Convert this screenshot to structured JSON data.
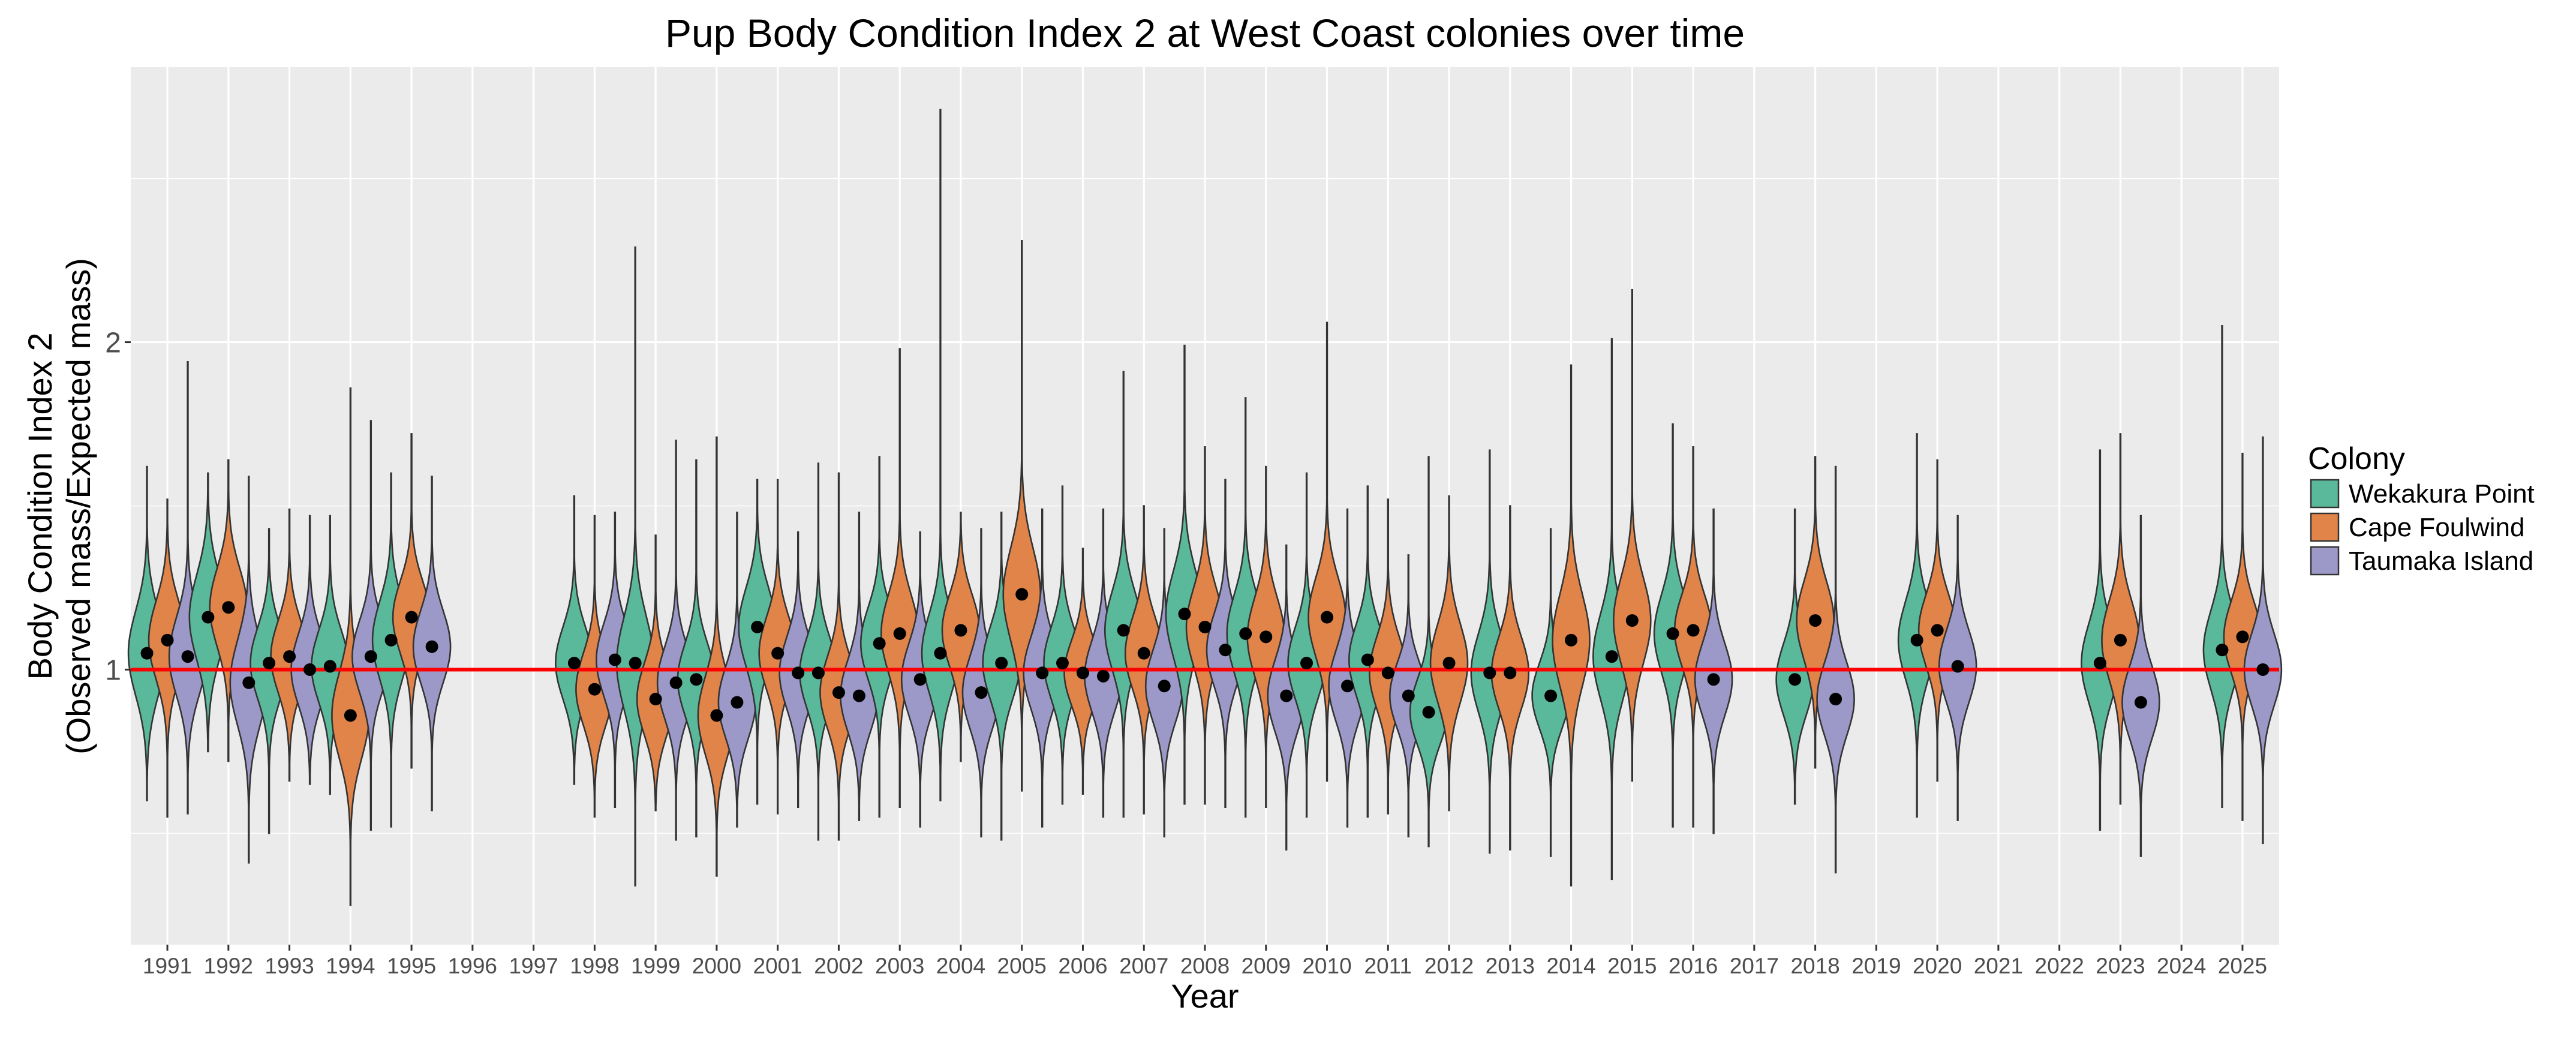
{
  "chart_data": {
    "type": "violin",
    "title": "Pup Body Condition Index 2 at West Coast colonies over time",
    "xlabel": "Year",
    "ylabel_lines": [
      "Body Condition Index 2",
      "(Observed mass/Expected mass)"
    ],
    "y_ticks": [
      1,
      2
    ],
    "y_tick_labels": [
      "1",
      "2"
    ],
    "ylim": [
      0.16,
      2.84
    ],
    "reference_line": {
      "value": 1,
      "color": "#ff0000"
    },
    "legend": {
      "title": "Colony",
      "position": "right",
      "entries": [
        {
          "name": "Wekakura Point",
          "color": "#5bb99b"
        },
        {
          "name": "Cape Foulwind",
          "color": "#e0844a"
        },
        {
          "name": "Taumaka Island",
          "color": "#9c99c9"
        }
      ]
    },
    "years": [
      "1991",
      "1992",
      "1993",
      "1994",
      "1995",
      "1996",
      "1997",
      "1998",
      "1999",
      "2000",
      "2001",
      "2002",
      "2003",
      "2004",
      "2005",
      "2006",
      "2007",
      "2008",
      "2009",
      "2010",
      "2011",
      "2012",
      "2013",
      "2014",
      "2015",
      "2016",
      "2017",
      "2018",
      "2019",
      "2020",
      "2021",
      "2022",
      "2023",
      "2024",
      "2025"
    ],
    "series": [
      {
        "year": "1991",
        "colony": "Wekakura Point",
        "mean": 1.05,
        "min": 0.6,
        "max": 1.62,
        "spread": 0.13
      },
      {
        "year": "1991",
        "colony": "Cape Foulwind",
        "mean": 1.09,
        "min": 0.55,
        "max": 1.52,
        "spread": 0.12
      },
      {
        "year": "1991",
        "colony": "Taumaka Island",
        "mean": 1.04,
        "min": 0.56,
        "max": 1.94,
        "spread": 0.12
      },
      {
        "year": "1992",
        "colony": "Wekakura Point",
        "mean": 1.16,
        "min": 0.75,
        "max": 1.6,
        "spread": 0.13
      },
      {
        "year": "1992",
        "colony": "Cape Foulwind",
        "mean": 1.19,
        "min": 0.72,
        "max": 1.64,
        "spread": 0.12
      },
      {
        "year": "1992",
        "colony": "Taumaka Island",
        "mean": 0.96,
        "min": 0.41,
        "max": 1.59,
        "spread": 0.13
      },
      {
        "year": "1993",
        "colony": "Wekakura Point",
        "mean": 1.02,
        "min": 0.5,
        "max": 1.43,
        "spread": 0.11
      },
      {
        "year": "1993",
        "colony": "Cape Foulwind",
        "mean": 1.04,
        "min": 0.66,
        "max": 1.49,
        "spread": 0.11
      },
      {
        "year": "1993",
        "colony": "Taumaka Island",
        "mean": 1.0,
        "min": 0.65,
        "max": 1.47,
        "spread": 0.11
      },
      {
        "year": "1994",
        "colony": "Wekakura Point",
        "mean": 1.01,
        "min": 0.62,
        "max": 1.47,
        "spread": 0.11
      },
      {
        "year": "1994",
        "colony": "Cape Foulwind",
        "mean": 0.86,
        "min": 0.28,
        "max": 1.86,
        "spread": 0.13
      },
      {
        "year": "1994",
        "colony": "Taumaka Island",
        "mean": 1.04,
        "min": 0.51,
        "max": 1.76,
        "spread": 0.11
      },
      {
        "year": "1995",
        "colony": "Wekakura Point",
        "mean": 1.09,
        "min": 0.52,
        "max": 1.6,
        "spread": 0.12
      },
      {
        "year": "1995",
        "colony": "Cape Foulwind",
        "mean": 1.16,
        "min": 0.7,
        "max": 1.72,
        "spread": 0.11
      },
      {
        "year": "1995",
        "colony": "Taumaka Island",
        "mean": 1.07,
        "min": 0.57,
        "max": 1.59,
        "spread": 0.11
      },
      {
        "year": "1998",
        "colony": "Wekakura Point",
        "mean": 1.02,
        "min": 0.65,
        "max": 1.53,
        "spread": 0.11
      },
      {
        "year": "1998",
        "colony": "Cape Foulwind",
        "mean": 0.94,
        "min": 0.55,
        "max": 1.47,
        "spread": 0.11
      },
      {
        "year": "1998",
        "colony": "Taumaka Island",
        "mean": 1.03,
        "min": 0.58,
        "max": 1.48,
        "spread": 0.11
      },
      {
        "year": "1999",
        "colony": "Wekakura Point",
        "mean": 1.02,
        "min": 0.34,
        "max": 2.29,
        "spread": 0.14
      },
      {
        "year": "1999",
        "colony": "Cape Foulwind",
        "mean": 0.91,
        "min": 0.57,
        "max": 1.41,
        "spread": 0.11
      },
      {
        "year": "1999",
        "colony": "Taumaka Island",
        "mean": 0.96,
        "min": 0.48,
        "max": 1.7,
        "spread": 0.11
      },
      {
        "year": "2000",
        "colony": "Wekakura Point",
        "mean": 0.97,
        "min": 0.49,
        "max": 1.64,
        "spread": 0.11
      },
      {
        "year": "2000",
        "colony": "Cape Foulwind",
        "mean": 0.86,
        "min": 0.37,
        "max": 1.71,
        "spread": 0.12
      },
      {
        "year": "2000",
        "colony": "Taumaka Island",
        "mean": 0.9,
        "min": 0.52,
        "max": 1.48,
        "spread": 0.11
      },
      {
        "year": "2001",
        "colony": "Wekakura Point",
        "mean": 1.13,
        "min": 0.59,
        "max": 1.58,
        "spread": 0.12
      },
      {
        "year": "2001",
        "colony": "Cape Foulwind",
        "mean": 1.05,
        "min": 0.56,
        "max": 1.58,
        "spread": 0.11
      },
      {
        "year": "2001",
        "colony": "Taumaka Island",
        "mean": 0.99,
        "min": 0.58,
        "max": 1.42,
        "spread": 0.11
      },
      {
        "year": "2002",
        "colony": "Wekakura Point",
        "mean": 0.99,
        "min": 0.48,
        "max": 1.63,
        "spread": 0.11
      },
      {
        "year": "2002",
        "colony": "Cape Foulwind",
        "mean": 0.93,
        "min": 0.48,
        "max": 1.6,
        "spread": 0.11
      },
      {
        "year": "2002",
        "colony": "Taumaka Island",
        "mean": 0.92,
        "min": 0.54,
        "max": 1.48,
        "spread": 0.11
      },
      {
        "year": "2003",
        "colony": "Wekakura Point",
        "mean": 1.08,
        "min": 0.55,
        "max": 1.65,
        "spread": 0.11
      },
      {
        "year": "2003",
        "colony": "Cape Foulwind",
        "mean": 1.11,
        "min": 0.58,
        "max": 1.98,
        "spread": 0.12
      },
      {
        "year": "2003",
        "colony": "Taumaka Island",
        "mean": 0.97,
        "min": 0.52,
        "max": 1.42,
        "spread": 0.11
      },
      {
        "year": "2004",
        "colony": "Wekakura Point",
        "mean": 1.05,
        "min": 0.6,
        "max": 2.71,
        "spread": 0.12
      },
      {
        "year": "2004",
        "colony": "Cape Foulwind",
        "mean": 1.12,
        "min": 0.72,
        "max": 1.48,
        "spread": 0.11
      },
      {
        "year": "2004",
        "colony": "Taumaka Island",
        "mean": 0.93,
        "min": 0.49,
        "max": 1.43,
        "spread": 0.11
      },
      {
        "year": "2005",
        "colony": "Wekakura Point",
        "mean": 1.02,
        "min": 0.48,
        "max": 1.48,
        "spread": 0.11
      },
      {
        "year": "2005",
        "colony": "Cape Foulwind",
        "mean": 1.23,
        "min": 0.63,
        "max": 2.31,
        "spread": 0.14
      },
      {
        "year": "2005",
        "colony": "Taumaka Island",
        "mean": 0.99,
        "min": 0.52,
        "max": 1.49,
        "spread": 0.11
      },
      {
        "year": "2006",
        "colony": "Wekakura Point",
        "mean": 1.02,
        "min": 0.59,
        "max": 1.56,
        "spread": 0.11
      },
      {
        "year": "2006",
        "colony": "Cape Foulwind",
        "mean": 0.99,
        "min": 0.62,
        "max": 1.37,
        "spread": 0.1
      },
      {
        "year": "2006",
        "colony": "Taumaka Island",
        "mean": 0.98,
        "min": 0.55,
        "max": 1.49,
        "spread": 0.11
      },
      {
        "year": "2007",
        "colony": "Wekakura Point",
        "mean": 1.12,
        "min": 0.55,
        "max": 1.91,
        "spread": 0.12
      },
      {
        "year": "2007",
        "colony": "Cape Foulwind",
        "mean": 1.05,
        "min": 0.56,
        "max": 1.5,
        "spread": 0.11
      },
      {
        "year": "2007",
        "colony": "Taumaka Island",
        "mean": 0.95,
        "min": 0.49,
        "max": 1.43,
        "spread": 0.11
      },
      {
        "year": "2008",
        "colony": "Wekakura Point",
        "mean": 1.17,
        "min": 0.59,
        "max": 1.99,
        "spread": 0.13
      },
      {
        "year": "2008",
        "colony": "Cape Foulwind",
        "mean": 1.13,
        "min": 0.59,
        "max": 1.68,
        "spread": 0.12
      },
      {
        "year": "2008",
        "colony": "Taumaka Island",
        "mean": 1.06,
        "min": 0.58,
        "max": 1.58,
        "spread": 0.11
      },
      {
        "year": "2009",
        "colony": "Wekakura Point",
        "mean": 1.11,
        "min": 0.55,
        "max": 1.83,
        "spread": 0.12
      },
      {
        "year": "2009",
        "colony": "Cape Foulwind",
        "mean": 1.1,
        "min": 0.58,
        "max": 1.62,
        "spread": 0.12
      },
      {
        "year": "2009",
        "colony": "Taumaka Island",
        "mean": 0.92,
        "min": 0.45,
        "max": 1.38,
        "spread": 0.11
      },
      {
        "year": "2010",
        "colony": "Wekakura Point",
        "mean": 1.02,
        "min": 0.55,
        "max": 1.6,
        "spread": 0.11
      },
      {
        "year": "2010",
        "colony": "Cape Foulwind",
        "mean": 1.16,
        "min": 0.66,
        "max": 2.06,
        "spread": 0.12
      },
      {
        "year": "2010",
        "colony": "Taumaka Island",
        "mean": 0.95,
        "min": 0.52,
        "max": 1.49,
        "spread": 0.11
      },
      {
        "year": "2011",
        "colony": "Wekakura Point",
        "mean": 1.03,
        "min": 0.55,
        "max": 1.56,
        "spread": 0.11
      },
      {
        "year": "2011",
        "colony": "Cape Foulwind",
        "mean": 0.99,
        "min": 0.56,
        "max": 1.52,
        "spread": 0.11
      },
      {
        "year": "2011",
        "colony": "Taumaka Island",
        "mean": 0.92,
        "min": 0.49,
        "max": 1.35,
        "spread": 0.1
      },
      {
        "year": "2012",
        "colony": "Wekakura Point",
        "mean": 0.87,
        "min": 0.46,
        "max": 1.65,
        "spread": 0.1
      },
      {
        "year": "2012",
        "colony": "Cape Foulwind",
        "mean": 1.02,
        "min": 0.57,
        "max": 1.53,
        "spread": 0.12
      },
      {
        "year": "2013",
        "colony": "Wekakura Point",
        "mean": 0.99,
        "min": 0.44,
        "max": 1.67,
        "spread": 0.12
      },
      {
        "year": "2013",
        "colony": "Cape Foulwind",
        "mean": 0.99,
        "min": 0.45,
        "max": 1.5,
        "spread": 0.11
      },
      {
        "year": "2014",
        "colony": "Wekakura Point",
        "mean": 0.92,
        "min": 0.43,
        "max": 1.43,
        "spread": 0.1
      },
      {
        "year": "2014",
        "colony": "Cape Foulwind",
        "mean": 1.09,
        "min": 0.34,
        "max": 1.93,
        "spread": 0.14
      },
      {
        "year": "2015",
        "colony": "Wekakura Point",
        "mean": 1.04,
        "min": 0.36,
        "max": 2.01,
        "spread": 0.13
      },
      {
        "year": "2015",
        "colony": "Cape Foulwind",
        "mean": 1.15,
        "min": 0.66,
        "max": 2.16,
        "spread": 0.13
      },
      {
        "year": "2016",
        "colony": "Wekakura Point",
        "mean": 1.11,
        "min": 0.52,
        "max": 1.75,
        "spread": 0.12
      },
      {
        "year": "2016",
        "colony": "Cape Foulwind",
        "mean": 1.12,
        "min": 0.52,
        "max": 1.68,
        "spread": 0.11
      },
      {
        "year": "2016",
        "colony": "Taumaka Island",
        "mean": 0.97,
        "min": 0.5,
        "max": 1.49,
        "spread": 0.11
      },
      {
        "year": "2018",
        "colony": "Wekakura Point",
        "mean": 0.97,
        "min": 0.59,
        "max": 1.49,
        "spread": 0.11
      },
      {
        "year": "2018",
        "colony": "Cape Foulwind",
        "mean": 1.15,
        "min": 0.7,
        "max": 1.65,
        "spread": 0.12
      },
      {
        "year": "2018",
        "colony": "Taumaka Island",
        "mean": 0.91,
        "min": 0.38,
        "max": 1.62,
        "spread": 0.11
      },
      {
        "year": "2020",
        "colony": "Wekakura Point",
        "mean": 1.09,
        "min": 0.55,
        "max": 1.72,
        "spread": 0.12
      },
      {
        "year": "2020",
        "colony": "Cape Foulwind",
        "mean": 1.12,
        "min": 0.66,
        "max": 1.64,
        "spread": 0.11
      },
      {
        "year": "2020",
        "colony": "Taumaka Island",
        "mean": 1.01,
        "min": 0.54,
        "max": 1.47,
        "spread": 0.11
      },
      {
        "year": "2023",
        "colony": "Wekakura Point",
        "mean": 1.02,
        "min": 0.51,
        "max": 1.67,
        "spread": 0.12
      },
      {
        "year": "2023",
        "colony": "Cape Foulwind",
        "mean": 1.09,
        "min": 0.59,
        "max": 1.72,
        "spread": 0.12
      },
      {
        "year": "2023",
        "colony": "Taumaka Island",
        "mean": 0.9,
        "min": 0.43,
        "max": 1.47,
        "spread": 0.11
      },
      {
        "year": "2025",
        "colony": "Wekakura Point",
        "mean": 1.06,
        "min": 0.58,
        "max": 2.05,
        "spread": 0.12
      },
      {
        "year": "2025",
        "colony": "Cape Foulwind",
        "mean": 1.1,
        "min": 0.54,
        "max": 1.66,
        "spread": 0.11
      },
      {
        "year": "2025",
        "colony": "Taumaka Island",
        "mean": 1.0,
        "min": 0.47,
        "max": 1.71,
        "spread": 0.11
      }
    ]
  }
}
